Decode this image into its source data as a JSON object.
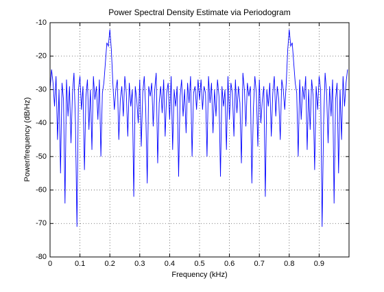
{
  "chart_data": {
    "type": "line",
    "title": "Power Spectral Density Estimate via Periodogram",
    "xlabel": "Frequency (kHz)",
    "ylabel": "Power/frequency (dB/Hz)",
    "x": [
      0,
      0.005,
      0.01,
      0.015,
      0.02,
      0.025,
      0.03,
      0.035,
      0.04,
      0.045,
      0.05,
      0.055,
      0.06,
      0.065,
      0.07,
      0.075,
      0.08,
      0.085,
      0.09,
      0.095,
      0.1,
      0.105,
      0.11,
      0.115,
      0.12,
      0.125,
      0.13,
      0.135,
      0.14,
      0.145,
      0.15,
      0.155,
      0.16,
      0.165,
      0.17,
      0.175,
      0.18,
      0.185,
      0.19,
      0.195,
      0.2,
      0.205,
      0.21,
      0.215,
      0.22,
      0.225,
      0.23,
      0.235,
      0.24,
      0.245,
      0.25,
      0.255,
      0.26,
      0.265,
      0.27,
      0.275,
      0.28,
      0.285,
      0.29,
      0.295,
      0.3,
      0.305,
      0.31,
      0.315,
      0.32,
      0.325,
      0.33,
      0.335,
      0.34,
      0.345,
      0.35,
      0.355,
      0.36,
      0.365,
      0.37,
      0.375,
      0.38,
      0.385,
      0.39,
      0.395,
      0.4,
      0.405,
      0.41,
      0.415,
      0.42,
      0.425,
      0.43,
      0.435,
      0.44,
      0.445,
      0.45,
      0.455,
      0.46,
      0.465,
      0.47,
      0.475,
      0.48,
      0.485,
      0.49,
      0.495,
      0.5,
      0.505,
      0.51,
      0.515,
      0.52,
      0.525,
      0.53,
      0.535,
      0.54,
      0.545,
      0.55,
      0.555,
      0.56,
      0.565,
      0.57,
      0.575,
      0.58,
      0.585,
      0.59,
      0.595,
      0.6,
      0.605,
      0.61,
      0.615,
      0.62,
      0.625,
      0.63,
      0.635,
      0.64,
      0.645,
      0.65,
      0.655,
      0.66,
      0.665,
      0.67,
      0.675,
      0.68,
      0.685,
      0.69,
      0.695,
      0.7,
      0.705,
      0.71,
      0.715,
      0.72,
      0.725,
      0.73,
      0.735,
      0.74,
      0.745,
      0.75,
      0.755,
      0.76,
      0.765,
      0.77,
      0.775,
      0.78,
      0.785,
      0.79,
      0.795,
      0.8,
      0.805,
      0.81,
      0.815,
      0.82,
      0.825,
      0.83,
      0.835,
      0.84,
      0.845,
      0.85,
      0.855,
      0.86,
      0.865,
      0.87,
      0.875,
      0.88,
      0.885,
      0.89,
      0.895,
      0.9,
      0.905,
      0.91,
      0.915,
      0.92,
      0.925,
      0.93,
      0.935,
      0.94,
      0.945,
      0.95,
      0.955,
      0.96,
      0.965,
      0.97,
      0.975,
      0.98,
      0.985,
      0.99,
      0.995
    ],
    "series": [
      {
        "name": "PSD",
        "color": "#0000ff",
        "values": [
          -30,
          -24,
          -28,
          -35,
          -26,
          -45,
          -30,
          -55,
          -28,
          -33,
          -64,
          -27,
          -38,
          -29,
          -46,
          -31,
          -25,
          -40,
          -71,
          -30,
          -26,
          -36,
          -29,
          -54,
          -32,
          -27,
          -42,
          -30,
          -48,
          -26,
          -33,
          -29,
          -39,
          -27,
          -50,
          -31,
          -28,
          -22,
          -16,
          -17,
          -12,
          -18,
          -28,
          -36,
          -30,
          -27,
          -45,
          -33,
          -29,
          -38,
          -26,
          -31,
          -44,
          -28,
          -35,
          -30,
          -62,
          -29,
          -33,
          -40,
          -27,
          -47,
          -31,
          -26,
          -36,
          -58,
          -29,
          -32,
          -28,
          -41,
          -30,
          -25,
          -52,
          -34,
          -29,
          -37,
          -27,
          -44,
          -31,
          -28,
          -39,
          -26,
          -48,
          -30,
          -35,
          -29,
          -56,
          -32,
          -27,
          -38,
          -30,
          -43,
          -28,
          -34,
          -26,
          -50,
          -31,
          -29,
          -36,
          -27,
          -33,
          -27,
          -36,
          -29,
          -31,
          -50,
          -26,
          -34,
          -28,
          -43,
          -30,
          -38,
          -27,
          -32,
          -56,
          -29,
          -35,
          -30,
          -48,
          -26,
          -39,
          -28,
          -31,
          -44,
          -27,
          -37,
          -29,
          -34,
          -52,
          -25,
          -30,
          -41,
          -28,
          -32,
          -29,
          -58,
          -36,
          -26,
          -31,
          -47,
          -27,
          -40,
          -33,
          -29,
          -62,
          -30,
          -35,
          -28,
          -44,
          -31,
          -26,
          -38,
          -29,
          -33,
          -45,
          -27,
          -30,
          -36,
          -28,
          -18,
          -12,
          -17,
          -16,
          -22,
          -28,
          -31,
          -50,
          -27,
          -39,
          -29,
          -33,
          -26,
          -48,
          -30,
          -42,
          -27,
          -32,
          -54,
          -29,
          -36,
          -26,
          -30,
          -71,
          -40,
          -25,
          -31,
          -46,
          -29,
          -38,
          -27,
          -64,
          -33,
          -28,
          -55,
          -30,
          -45,
          -26,
          -35,
          -28,
          -24
        ]
      }
    ],
    "xlim": [
      0,
      1
    ],
    "ylim": [
      -80,
      -10
    ],
    "xticks": [
      0,
      0.1,
      0.2,
      0.3,
      0.4,
      0.5,
      0.6,
      0.7,
      0.8,
      0.9
    ],
    "yticks": [
      -80,
      -70,
      -60,
      -50,
      -40,
      -30,
      -20,
      -10
    ],
    "grid": true
  }
}
